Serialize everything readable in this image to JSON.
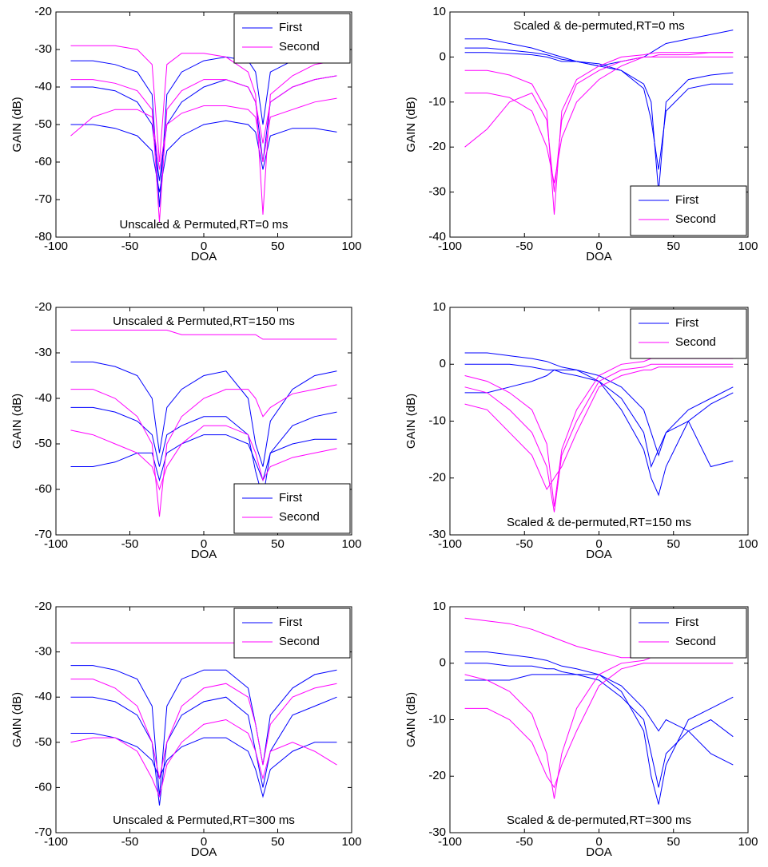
{
  "chart_data": [
    {
      "type": "line",
      "annotation": "Unscaled & Permuted,RT=0 ms",
      "xlabel": "DOA",
      "ylabel": "GAIN (dB)",
      "legend_loc": "upper right",
      "xlim": [
        -100,
        100
      ],
      "xticks": [
        -100,
        -50,
        0,
        50,
        100
      ],
      "ylim": [
        -80,
        -20
      ],
      "yticks": [
        -80,
        -70,
        -60,
        -50,
        -40,
        -30,
        -20
      ],
      "x": [
        -90,
        -75,
        -60,
        -45,
        -35,
        -30,
        -25,
        -15,
        0,
        15,
        30,
        35,
        40,
        45,
        60,
        75,
        90
      ],
      "series": [
        {
          "name": "First",
          "color": "#0000ff",
          "values": [
            -33,
            -33,
            -34,
            -36,
            -42,
            -72,
            -42,
            -36,
            -33,
            -32,
            -33,
            -36,
            -50,
            -36,
            -33,
            -32,
            -32
          ]
        },
        {
          "name": "First",
          "color": "#0000ff",
          "values": [
            -40,
            -40,
            -41,
            -44,
            -50,
            -65,
            -50,
            -44,
            -40,
            -38,
            -40,
            -44,
            -60,
            -44,
            -40,
            -38,
            -37
          ]
        },
        {
          "name": "First",
          "color": "#0000ff",
          "values": [
            -50,
            -50,
            -51,
            -53,
            -57,
            -68,
            -57,
            -53,
            -50,
            -49,
            -50,
            -52,
            -62,
            -53,
            -51,
            -51,
            -52
          ]
        },
        {
          "name": "Second",
          "color": "#ff00ff",
          "values": [
            -29,
            -29,
            -29,
            -30,
            -34,
            -60,
            -34,
            -31,
            -31,
            -32,
            -36,
            -42,
            -74,
            -42,
            -37,
            -34,
            -33
          ]
        },
        {
          "name": "Second",
          "color": "#ff00ff",
          "values": [
            -38,
            -38,
            -39,
            -41,
            -46,
            -76,
            -46,
            -41,
            -38,
            -38,
            -40,
            -44,
            -55,
            -44,
            -40,
            -38,
            -37
          ]
        },
        {
          "name": "Second",
          "color": "#ff00ff",
          "values": [
            -53,
            -48,
            -46,
            -46,
            -48,
            -62,
            -50,
            -47,
            -45,
            -45,
            -46,
            -48,
            -60,
            -48,
            -46,
            -44,
            -43
          ]
        }
      ]
    },
    {
      "type": "line",
      "annotation": "Scaled & de-permuted,RT=0 ms",
      "xlabel": "DOA",
      "ylabel": "GAIN (dB)",
      "legend_loc": "lower right",
      "xlim": [
        -100,
        100
      ],
      "xticks": [
        -100,
        -50,
        0,
        50,
        100
      ],
      "ylim": [
        -40,
        10
      ],
      "yticks": [
        -40,
        -30,
        -20,
        -10,
        0,
        10
      ],
      "x": [
        -90,
        -75,
        -60,
        -45,
        -35,
        -30,
        -25,
        -15,
        0,
        15,
        30,
        35,
        40,
        45,
        60,
        75,
        90
      ],
      "series": [
        {
          "name": "First",
          "color": "#0000ff",
          "values": [
            2,
            2,
            1.5,
            1,
            0.5,
            0,
            -0.5,
            -1,
            -2,
            -3,
            -6,
            -10,
            -30,
            -10,
            -5,
            -4,
            -3.5
          ]
        },
        {
          "name": "First",
          "color": "#0000ff",
          "values": [
            1,
            1,
            0.8,
            0.5,
            0,
            -0.5,
            -1,
            -1,
            -1.5,
            -3,
            -7,
            -14,
            -25,
            -12,
            -7,
            -6,
            -6
          ]
        },
        {
          "name": "First",
          "color": "#0000ff",
          "values": [
            4,
            4,
            3,
            2,
            1,
            0.5,
            0,
            -1,
            -2,
            -1,
            0,
            1,
            2,
            3,
            4,
            5,
            6
          ]
        },
        {
          "name": "Second",
          "color": "#ff00ff",
          "values": [
            -3,
            -3,
            -4,
            -6,
            -12,
            -35,
            -12,
            -5,
            -2,
            0,
            0.5,
            0.8,
            1,
            1,
            1,
            1,
            1
          ]
        },
        {
          "name": "Second",
          "color": "#ff00ff",
          "values": [
            -20,
            -16,
            -10,
            -8,
            -14,
            -30,
            -14,
            -6,
            -3,
            -1,
            0,
            0,
            0.5,
            0.5,
            0.5,
            1,
            1
          ]
        },
        {
          "name": "Second",
          "color": "#ff00ff",
          "values": [
            -8,
            -8,
            -9,
            -12,
            -20,
            -28,
            -18,
            -10,
            -5,
            -2,
            0,
            0,
            0,
            0,
            0,
            0,
            0
          ]
        }
      ]
    },
    {
      "type": "line",
      "annotation": "Unscaled & Permuted,RT=150 ms",
      "xlabel": "DOA",
      "ylabel": "GAIN (dB)",
      "legend_loc": "lower right",
      "xlim": [
        -100,
        100
      ],
      "xticks": [
        -100,
        -50,
        0,
        50,
        100
      ],
      "ylim": [
        -70,
        -20
      ],
      "yticks": [
        -70,
        -60,
        -50,
        -40,
        -30,
        -20
      ],
      "x": [
        -90,
        -75,
        -60,
        -45,
        -35,
        -30,
        -25,
        -15,
        0,
        15,
        30,
        35,
        40,
        45,
        60,
        75,
        90
      ],
      "series": [
        {
          "name": "First",
          "color": "#0000ff",
          "values": [
            -32,
            -32,
            -33,
            -35,
            -40,
            -52,
            -42,
            -38,
            -35,
            -34,
            -40,
            -50,
            -55,
            -45,
            -38,
            -35,
            -34
          ]
        },
        {
          "name": "First",
          "color": "#0000ff",
          "values": [
            -42,
            -42,
            -43,
            -45,
            -48,
            -55,
            -48,
            -46,
            -44,
            -44,
            -48,
            -56,
            -62,
            -52,
            -46,
            -44,
            -43
          ]
        },
        {
          "name": "First",
          "color": "#0000ff",
          "values": [
            -55,
            -55,
            -54,
            -52,
            -52,
            -58,
            -52,
            -50,
            -48,
            -48,
            -50,
            -54,
            -58,
            -52,
            -50,
            -49,
            -49
          ]
        },
        {
          "name": "Second",
          "color": "#ff00ff",
          "values": [
            -25,
            -25,
            -25,
            -25,
            -25,
            -25,
            -25,
            -26,
            -26,
            -26,
            -26,
            -26,
            -27,
            -27,
            -27,
            -27,
            -27
          ]
        },
        {
          "name": "Second",
          "color": "#ff00ff",
          "values": [
            -38,
            -38,
            -40,
            -44,
            -50,
            -66,
            -50,
            -44,
            -40,
            -38,
            -38,
            -40,
            -44,
            -42,
            -39,
            -38,
            -37
          ]
        },
        {
          "name": "Second",
          "color": "#ff00ff",
          "values": [
            -47,
            -48,
            -50,
            -52,
            -55,
            -60,
            -55,
            -50,
            -46,
            -46,
            -48,
            -52,
            -58,
            -55,
            -53,
            -52,
            -51
          ]
        }
      ]
    },
    {
      "type": "line",
      "annotation": "Scaled & de-permuted,RT=150 ms",
      "xlabel": "DOA",
      "ylabel": "GAIN (dB)",
      "legend_loc": "upper right",
      "xlim": [
        -100,
        100
      ],
      "xticks": [
        -100,
        -50,
        0,
        50,
        100
      ],
      "ylim": [
        -30,
        10
      ],
      "yticks": [
        -30,
        -20,
        -10,
        0,
        10
      ],
      "x": [
        -90,
        -75,
        -60,
        -45,
        -35,
        -30,
        -25,
        -15,
        0,
        15,
        30,
        35,
        40,
        45,
        60,
        75,
        90
      ],
      "series": [
        {
          "name": "First",
          "color": "#0000ff",
          "values": [
            2,
            2,
            1.5,
            1,
            0.5,
            0,
            -0.5,
            -1,
            -3,
            -8,
            -15,
            -20,
            -23,
            -18,
            -10,
            -7,
            -5
          ]
        },
        {
          "name": "First",
          "color": "#0000ff",
          "values": [
            0,
            0,
            0,
            -0.5,
            -1,
            -1,
            -1.5,
            -2,
            -3,
            -6,
            -12,
            -18,
            -15,
            -12,
            -8,
            -6,
            -4
          ]
        },
        {
          "name": "First",
          "color": "#0000ff",
          "values": [
            -5,
            -5,
            -4,
            -3,
            -2,
            -1,
            -1,
            -1,
            -2,
            -4,
            -8,
            -12,
            -16,
            -12,
            -10,
            -18,
            -17
          ]
        },
        {
          "name": "Second",
          "color": "#ff00ff",
          "values": [
            -2,
            -3,
            -5,
            -8,
            -14,
            -25,
            -15,
            -8,
            -2,
            0,
            0.5,
            1,
            1,
            1,
            1,
            1,
            1
          ]
        },
        {
          "name": "Second",
          "color": "#ff00ff",
          "values": [
            -4,
            -5,
            -8,
            -12,
            -18,
            -26,
            -16,
            -10,
            -3,
            -1,
            -0.5,
            0,
            0,
            0,
            0,
            0,
            0
          ]
        },
        {
          "name": "Second",
          "color": "#ff00ff",
          "values": [
            -7,
            -8,
            -12,
            -16,
            -22,
            -20,
            -18,
            -12,
            -4,
            -2,
            -1,
            -1,
            -0.5,
            -0.5,
            -0.5,
            -0.5,
            -0.5
          ]
        }
      ]
    },
    {
      "type": "line",
      "annotation": "Unscaled & Permuted,RT=300 ms",
      "xlabel": "DOA",
      "ylabel": "GAIN (dB)",
      "legend_loc": "upper right",
      "xlim": [
        -100,
        100
      ],
      "xticks": [
        -100,
        -50,
        0,
        50,
        100
      ],
      "ylim": [
        -70,
        -20
      ],
      "yticks": [
        -70,
        -60,
        -50,
        -40,
        -30,
        -20
      ],
      "x": [
        -90,
        -75,
        -60,
        -45,
        -35,
        -30,
        -25,
        -15,
        0,
        15,
        30,
        35,
        40,
        45,
        60,
        75,
        90
      ],
      "series": [
        {
          "name": "First",
          "color": "#0000ff",
          "values": [
            -33,
            -33,
            -34,
            -36,
            -42,
            -62,
            -42,
            -36,
            -34,
            -34,
            -38,
            -46,
            -55,
            -44,
            -38,
            -35,
            -34
          ]
        },
        {
          "name": "First",
          "color": "#0000ff",
          "values": [
            -40,
            -40,
            -41,
            -44,
            -50,
            -64,
            -50,
            -44,
            -41,
            -40,
            -44,
            -52,
            -60,
            -52,
            -44,
            -42,
            -40
          ]
        },
        {
          "name": "First",
          "color": "#0000ff",
          "values": [
            -48,
            -48,
            -49,
            -51,
            -54,
            -58,
            -54,
            -51,
            -49,
            -49,
            -52,
            -56,
            -62,
            -56,
            -52,
            -50,
            -50
          ]
        },
        {
          "name": "Second",
          "color": "#ff00ff",
          "values": [
            -28,
            -28,
            -28,
            -28,
            -28,
            -28,
            -28,
            -28,
            -28,
            -28,
            -28,
            -28,
            -28,
            -28,
            -28,
            -28,
            -28
          ]
        },
        {
          "name": "Second",
          "color": "#ff00ff",
          "values": [
            -36,
            -36,
            -38,
            -42,
            -50,
            -58,
            -50,
            -42,
            -38,
            -37,
            -40,
            -46,
            -55,
            -46,
            -40,
            -38,
            -37
          ]
        },
        {
          "name": "Second",
          "color": "#ff00ff",
          "values": [
            -50,
            -49,
            -49,
            -52,
            -58,
            -62,
            -55,
            -50,
            -46,
            -45,
            -48,
            -52,
            -58,
            -52,
            -50,
            -52,
            -55
          ]
        }
      ]
    },
    {
      "type": "line",
      "annotation": "Scaled & de-permuted,RT=300 ms",
      "xlabel": "DOA",
      "ylabel": "GAIN (dB)",
      "legend_loc": "upper right",
      "xlim": [
        -100,
        100
      ],
      "xticks": [
        -100,
        -50,
        0,
        50,
        100
      ],
      "ylim": [
        -30,
        10
      ],
      "yticks": [
        -30,
        -20,
        -10,
        0,
        10
      ],
      "x": [
        -90,
        -75,
        -60,
        -45,
        -35,
        -30,
        -25,
        -15,
        0,
        15,
        30,
        35,
        40,
        45,
        60,
        75,
        90
      ],
      "series": [
        {
          "name": "First",
          "color": "#0000ff",
          "values": [
            2,
            2,
            1.5,
            1,
            0.5,
            0,
            -0.5,
            -1,
            -2,
            -5,
            -12,
            -20,
            -25,
            -18,
            -10,
            -8,
            -6
          ]
        },
        {
          "name": "First",
          "color": "#0000ff",
          "values": [
            0,
            0,
            -0.5,
            -0.5,
            -1,
            -1,
            -1.5,
            -2,
            -3,
            -6,
            -10,
            -16,
            -22,
            -16,
            -12,
            -10,
            -13
          ]
        },
        {
          "name": "First",
          "color": "#0000ff",
          "values": [
            -3,
            -3,
            -3,
            -2,
            -2,
            -2,
            -2,
            -2,
            -2,
            -4,
            -8,
            -10,
            -12,
            -10,
            -12,
            -16,
            -18
          ]
        },
        {
          "name": "Second",
          "color": "#ff00ff",
          "values": [
            8,
            7.5,
            7,
            6,
            5,
            4.5,
            4,
            3,
            2,
            1,
            1,
            1,
            1,
            1,
            1,
            1,
            1
          ]
        },
        {
          "name": "Second",
          "color": "#ff00ff",
          "values": [
            -2,
            -3,
            -5,
            -9,
            -16,
            -24,
            -16,
            -8,
            -2,
            0,
            0.5,
            1,
            1,
            1,
            1,
            1,
            1
          ]
        },
        {
          "name": "Second",
          "color": "#ff00ff",
          "values": [
            -8,
            -8,
            -10,
            -14,
            -20,
            -22,
            -18,
            -12,
            -4,
            -1,
            0,
            0,
            0,
            0,
            0,
            0,
            0
          ]
        }
      ]
    }
  ]
}
